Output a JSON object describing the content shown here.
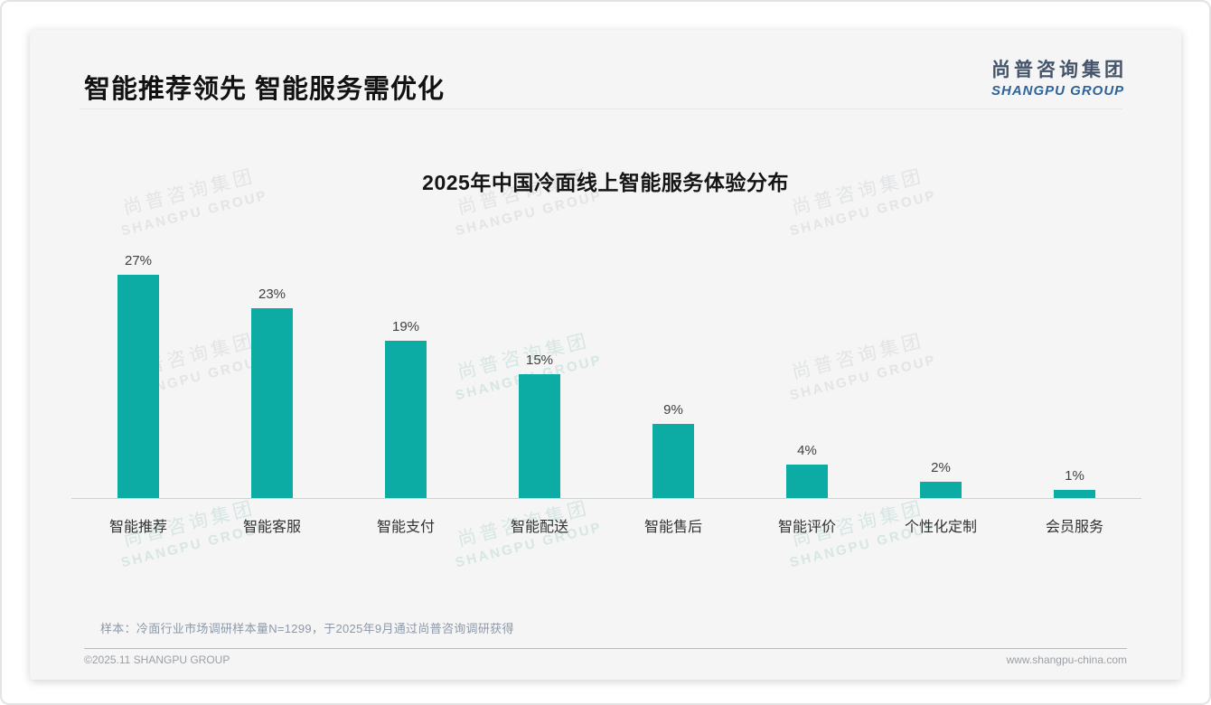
{
  "header": {
    "title": "智能推荐领先 智能服务需优化",
    "logo_cn": "尚普咨询集团",
    "logo_en": "SHANGPU GROUP"
  },
  "watermark": {
    "cn": "尚普咨询集团",
    "en": "SHANGPU GROUP"
  },
  "chart_data": {
    "type": "bar",
    "title": "2025年中国冷面线上智能服务体验分布",
    "categories": [
      "智能推荐",
      "智能客服",
      "智能支付",
      "智能配送",
      "智能售后",
      "智能评价",
      "个性化定制",
      "会员服务"
    ],
    "values": [
      27,
      23,
      19,
      15,
      9,
      4,
      2,
      1
    ],
    "unit": "%",
    "xlabel": "",
    "ylabel": "",
    "ylim": [
      0,
      30
    ],
    "grid": false,
    "legend": false,
    "bar_color": "#0CACA4"
  },
  "note": "样本：冷面行业市场调研样本量N=1299，于2025年9月通过尚普咨询调研获得",
  "footer": {
    "left": "©2025.11 SHANGPU GROUP",
    "right": "www.shangpu-china.com"
  },
  "colors": {
    "accent_teal": "#0CACA4",
    "logo_blue": "#2e6399",
    "card_bg": "#f5f5f6"
  }
}
